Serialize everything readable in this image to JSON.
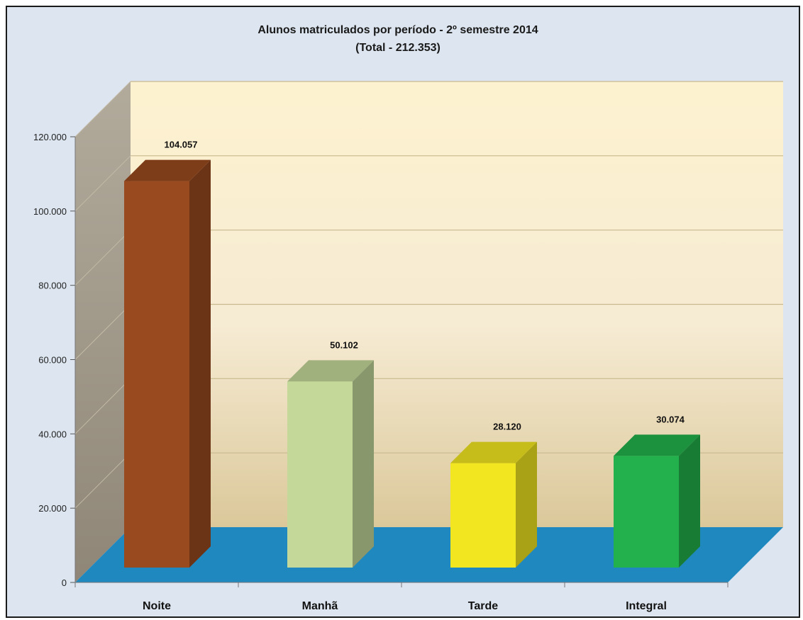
{
  "chart_data": {
    "type": "bar",
    "title": "Alunos matriculados por período -  2º semestre 2014",
    "subtitle": "(Total - 212.353)",
    "categories": [
      "Noite",
      "Manhã",
      "Tarde",
      "Integral"
    ],
    "values": [
      104057,
      50102,
      28120,
      30074
    ],
    "data_labels": [
      "104.057",
      "50.102",
      "28.120",
      "30.074"
    ],
    "ylim": [
      0,
      120000
    ],
    "yticks": [
      0,
      20000,
      40000,
      60000,
      80000,
      100000,
      120000
    ],
    "ytick_labels": [
      "0",
      "20.000",
      "40.000",
      "60.000",
      "80.000",
      "100.000",
      "120.000"
    ],
    "grid": true,
    "style": "3d-column",
    "colors": {
      "Noite": "#9a4a1f",
      "Manhã": "#c4d89a",
      "Tarde": "#f2e620",
      "Integral": "#22b14c",
      "floor": "#1e88bf",
      "side_wall": "#a39a88",
      "back_wall": "#fbefce",
      "background": "#dde6f0"
    }
  }
}
